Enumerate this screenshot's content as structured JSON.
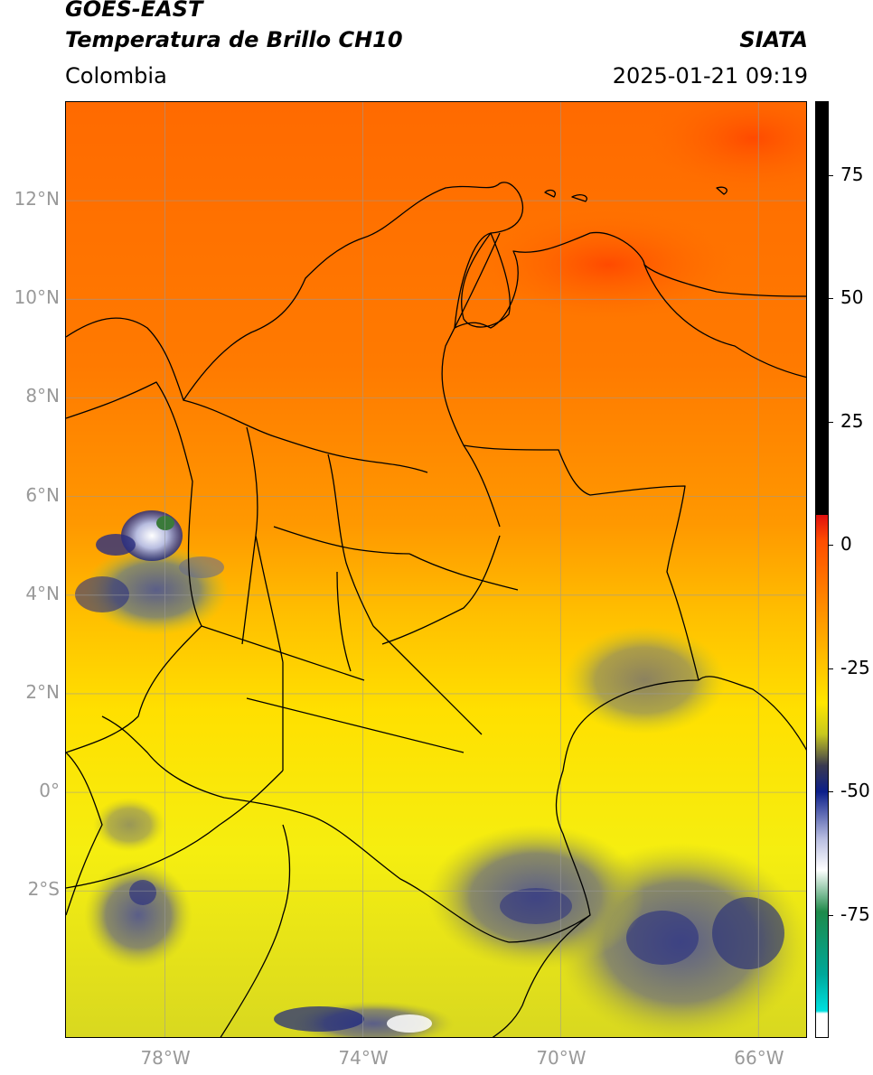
{
  "header": {
    "satellite": "GOES-EAST",
    "product": "Temperatura de Brillo CH10",
    "agency": "SIATA",
    "region": "Colombia",
    "timestamp": "2025-01-21 09:19"
  },
  "map": {
    "lat_ticks": [
      "12°N",
      "10°N",
      "8°N",
      "6°N",
      "4°N",
      "2°N",
      "0°",
      "2°S"
    ],
    "lon_ticks": [
      "78°W",
      "74°W",
      "70°W",
      "66°W"
    ],
    "extent": {
      "lon_min": -80,
      "lon_max": -65,
      "lat_min": -5,
      "lat_max": 14
    }
  },
  "colorbar": {
    "ticks": [
      "75",
      "50",
      "25",
      "0",
      "-25",
      "-50",
      "-75"
    ],
    "range": [
      -100,
      90
    ],
    "colors": [
      "#ffffff",
      "#00d6cc",
      "#1e8a4a",
      "#ffffff",
      "#0c1f8a",
      "#c8c81e",
      "#ffe600",
      "#ff9a00",
      "#ff4e00",
      "#e01010",
      "#000000"
    ]
  }
}
